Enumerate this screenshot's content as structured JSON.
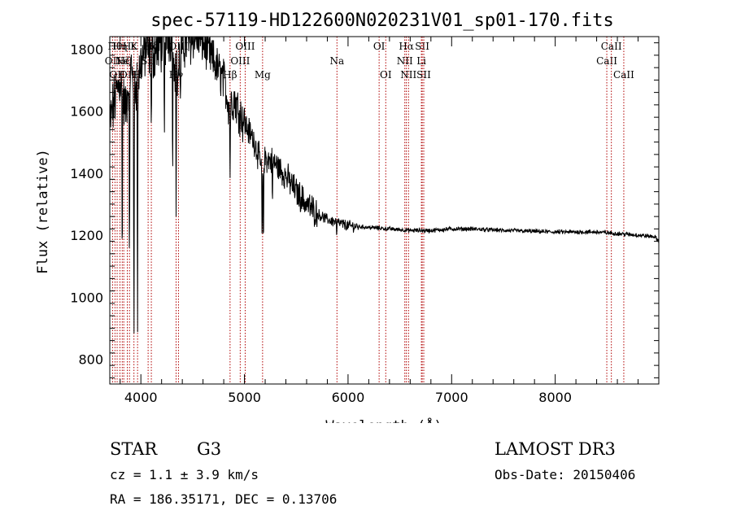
{
  "chart_data": {
    "type": "line",
    "title": "spec-57119-HD122600N020231V01_sp01-170.fits",
    "xlabel": "Wavelength (Å)",
    "ylabel": "Flux (relative)",
    "xlim": [
      3700,
      9000
    ],
    "ylim": [
      720,
      1840
    ],
    "xticks": [
      4000,
      5000,
      6000,
      7000,
      8000
    ],
    "xtick_labels": [
      "4000",
      "5000",
      "6000",
      "7000",
      "8000"
    ],
    "yticks": [
      800,
      1000,
      1200,
      1400,
      1600,
      1800
    ],
    "ytick_labels": [
      "800",
      "1000",
      "1200",
      "1400",
      "1600",
      "1800"
    ],
    "grid": false,
    "series": [
      {
        "name": "flux",
        "anchors_x": [
          3700,
          3750,
          3800,
          3850,
          3900,
          3950,
          4000,
          4050,
          4100,
          4200,
          4300,
          4350,
          4400,
          4500,
          4600,
          4700,
          4800,
          4850,
          4900,
          4950,
          5000,
          5100,
          5180,
          5200,
          5300,
          5400,
          5500,
          5600,
          5700,
          5800,
          5900,
          6000,
          6200,
          6400,
          6600,
          6800,
          7000,
          7200,
          7500,
          8000,
          8400,
          8600,
          8800,
          8960,
          9000
        ],
        "anchors_y": [
          1560,
          1640,
          1700,
          1600,
          1740,
          1680,
          1760,
          1800,
          1780,
          1820,
          1850,
          1700,
          1820,
          1840,
          1820,
          1760,
          1700,
          1620,
          1640,
          1600,
          1560,
          1500,
          1400,
          1450,
          1430,
          1390,
          1340,
          1300,
          1270,
          1250,
          1240,
          1230,
          1225,
          1220,
          1215,
          1215,
          1220,
          1220,
          1215,
          1210,
          1210,
          1205,
          1200,
          1195,
          1180
        ],
        "noise_by_range": [
          {
            "range": [
              3700,
              4500
            ],
            "amplitude": 80
          },
          {
            "range": [
              4500,
              5000
            ],
            "amplitude": 60
          },
          {
            "range": [
              5000,
              5700
            ],
            "amplitude": 40
          },
          {
            "range": [
              5700,
              6100
            ],
            "amplitude": 15
          },
          {
            "range": [
              6100,
              9000
            ],
            "amplitude": 6
          }
        ],
        "absorption_dips": [
          {
            "x": 3820,
            "min": 1000
          },
          {
            "x": 3890,
            "min": 960
          },
          {
            "x": 3933,
            "min": 760
          },
          {
            "x": 3968,
            "min": 740
          },
          {
            "x": 4101,
            "min": 1500
          },
          {
            "x": 4227,
            "min": 1450
          },
          {
            "x": 4307,
            "min": 1330
          },
          {
            "x": 4340,
            "min": 1260
          },
          {
            "x": 4383,
            "min": 1600
          },
          {
            "x": 4861,
            "min": 1350
          },
          {
            "x": 5170,
            "min": 1130
          },
          {
            "x": 5183,
            "min": 1110
          },
          {
            "x": 5270,
            "min": 1280
          },
          {
            "x": 5890,
            "min": 1190
          }
        ]
      }
    ],
    "line_markers": [
      {
        "x": 3727,
        "label": "OII",
        "row": 2
      },
      {
        "x": 3750,
        "label": "Hθ",
        "row": 1
      },
      {
        "x": 3771,
        "label": "OII",
        "row": 3
      },
      {
        "x": 3798,
        "label": "Hη",
        "row": 1
      },
      {
        "x": 3820,
        "label": "Ne",
        "row": 2
      },
      {
        "x": 3835,
        "label": "Hζ",
        "row": 2
      },
      {
        "x": 3869,
        "label": "OII",
        "row": 3
      },
      {
        "x": 3890,
        "label": "Hε",
        "row": 1
      },
      {
        "x": 3933,
        "label": "K",
        "row": 1
      },
      {
        "x": 3968,
        "label": "H",
        "row": 3
      },
      {
        "x": 4070,
        "label": "SII",
        "row": 2
      },
      {
        "x": 4101,
        "label": "Hδ",
        "row": 1
      },
      {
        "x": 4340,
        "label": "Hγ",
        "row": 3
      },
      {
        "x": 4363,
        "label": "OIII",
        "row": 1
      },
      {
        "x": 4861,
        "label": "Hβ",
        "row": 3
      },
      {
        "x": 4959,
        "label": "OIII",
        "row": 2
      },
      {
        "x": 5007,
        "label": "OIII",
        "row": 1
      },
      {
        "x": 5175,
        "label": "Mg",
        "row": 3
      },
      {
        "x": 5893,
        "label": "Na",
        "row": 2
      },
      {
        "x": 6300,
        "label": "OI",
        "row": 1
      },
      {
        "x": 6364,
        "label": "OI",
        "row": 3
      },
      {
        "x": 6548,
        "label": "NII",
        "row": 2
      },
      {
        "x": 6563,
        "label": "Hα",
        "row": 1
      },
      {
        "x": 6584,
        "label": "NII",
        "row": 3
      },
      {
        "x": 6708,
        "label": "Li",
        "row": 2
      },
      {
        "x": 6716,
        "label": "SII",
        "row": 1
      },
      {
        "x": 6731,
        "label": "SII",
        "row": 3
      },
      {
        "x": 8498,
        "label": "CaII",
        "row": 2
      },
      {
        "x": 8542,
        "label": "CaII",
        "row": 1
      },
      {
        "x": 8662,
        "label": "CaII",
        "row": 3
      }
    ]
  },
  "footer": {
    "object_class": "STAR",
    "subclass": "G3",
    "survey": "LAMOST DR3",
    "redshift": "cz = 1.1 ± 3.9 km/s",
    "obs_date": "Obs-Date: 20150406",
    "coords": "RA = 186.35171, DEC =    0.13706"
  },
  "colors": {
    "marker_line": "#b00000",
    "spectrum": "#000000",
    "axis": "#000000"
  }
}
